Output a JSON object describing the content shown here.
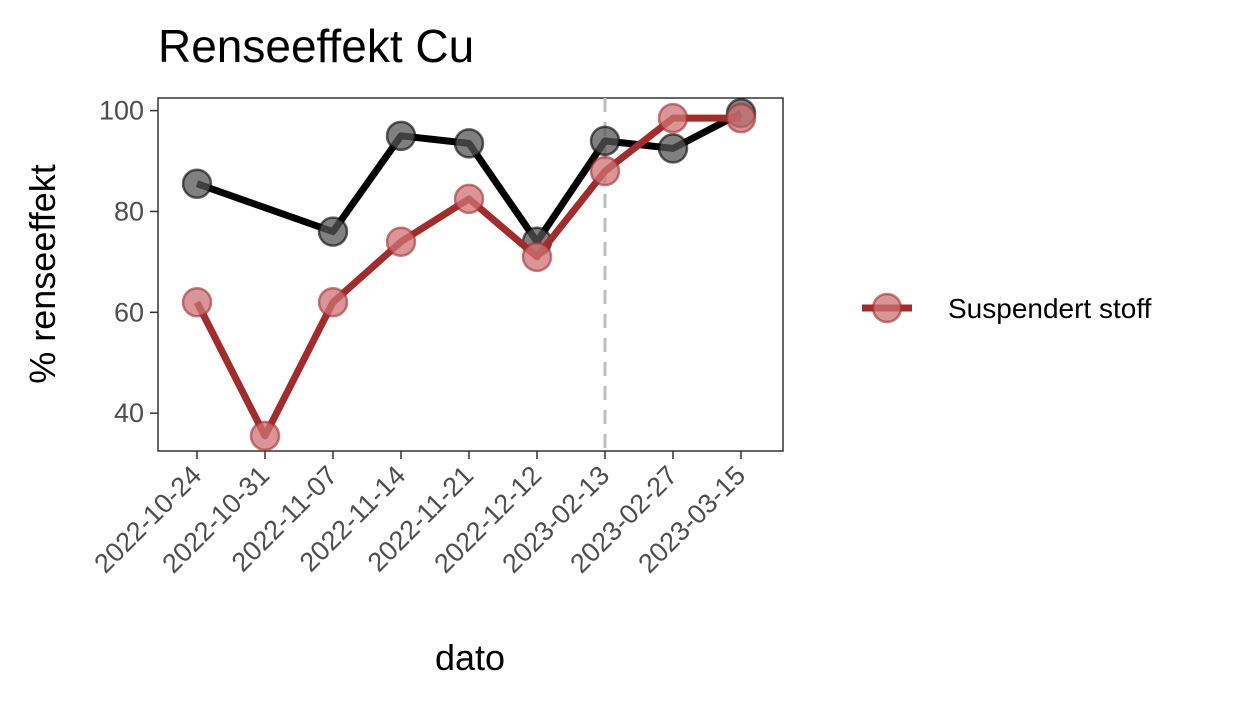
{
  "chart_data": {
    "type": "line",
    "title": "Renseeffekt Cu",
    "xlabel": "dato",
    "ylabel": "% renseeffekt",
    "categories": [
      "2022-10-24",
      "2022-10-31",
      "2022-11-07",
      "2022-11-14",
      "2022-11-21",
      "2022-12-12",
      "2023-02-13",
      "2023-02-27",
      "2023-03-15"
    ],
    "ylim": [
      32.5,
      102.5
    ],
    "yticks": [
      40,
      60,
      80,
      100
    ],
    "grid": false,
    "vline_category": "2023-02-13",
    "legend_position": "right",
    "series": [
      {
        "name": "",
        "color": "#000000",
        "point_color": "#555555",
        "values": [
          85.5,
          null,
          76,
          95,
          93.5,
          74,
          94,
          92.5,
          99.5
        ]
      },
      {
        "name": "Suspendert stoff",
        "color": "#a52a2a",
        "point_color": "#cd7373",
        "values": [
          62,
          35.5,
          62,
          74,
          82.5,
          71,
          88,
          98.5,
          98.5
        ]
      }
    ]
  }
}
